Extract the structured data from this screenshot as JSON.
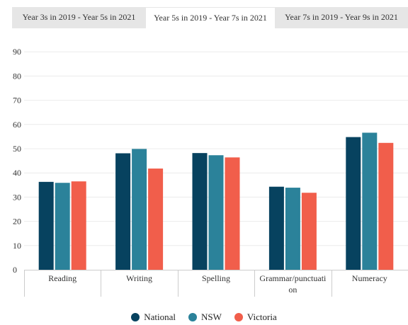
{
  "tabs": [
    {
      "label": "Year 3s in 2019 - Year 5s in 2021"
    },
    {
      "label": "Year 5s in 2019 - Year 7s in 2021"
    },
    {
      "label": "Year 7s in 2019 - Year 9s in 2021"
    }
  ],
  "active_tab": 1,
  "chart_data": {
    "type": "bar",
    "categories": [
      "Reading",
      "Writing",
      "Spelling",
      "Grammar/punctuation",
      "Numeracy"
    ],
    "category_label_lines": [
      [
        "Reading"
      ],
      [
        "Writing"
      ],
      [
        "Spelling"
      ],
      [
        "Grammar/punctuati",
        "on"
      ],
      [
        "Numeracy"
      ]
    ],
    "series": [
      {
        "name": "National",
        "color": "#07425f",
        "values": [
          36.3,
          48.1,
          48.2,
          34.3,
          54.8
        ]
      },
      {
        "name": "NSW",
        "color": "#2b829a",
        "values": [
          35.9,
          49.9,
          47.3,
          33.9,
          56.6
        ]
      },
      {
        "name": "Victoria",
        "color": "#f15e4b",
        "values": [
          36.5,
          41.8,
          46.4,
          31.8,
          52.4
        ]
      }
    ],
    "y_ticks": [
      0,
      10,
      20,
      30,
      40,
      50,
      60,
      70,
      80,
      90
    ],
    "ylim": [
      0,
      90
    ],
    "grid": true,
    "legend": "bottom-center"
  }
}
